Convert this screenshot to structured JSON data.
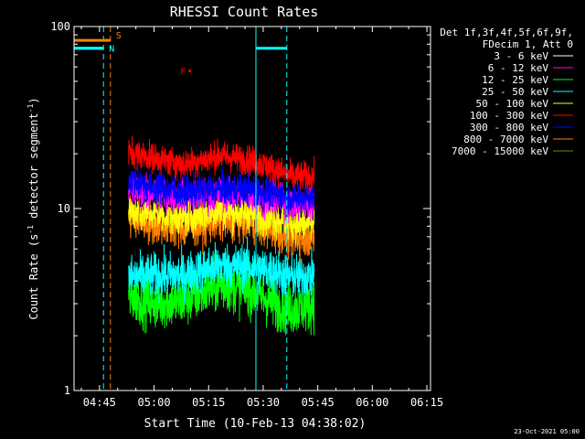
{
  "chart_data": {
    "type": "line",
    "title": "RHESSI Count Rates",
    "xlabel": "Start Time (10-Feb-13 04:38:02)",
    "ylabel_main": "Count Rate (s",
    "ylabel_sup1": "-1",
    "ylabel_mid": " detector segment",
    "ylabel_sup2": "-1",
    "ylabel_end": ")",
    "x_unit": "minutes since 04:38:02",
    "xlim": [
      0,
      98
    ],
    "ylim": [
      1,
      100
    ],
    "y_scale": "log",
    "x_ticks": [
      {
        "label": "04:45",
        "t": 7
      },
      {
        "label": "05:00",
        "t": 22
      },
      {
        "label": "05:15",
        "t": 37
      },
      {
        "label": "05:30",
        "t": 52
      },
      {
        "label": "05:45",
        "t": 67
      },
      {
        "label": "06:00",
        "t": 82
      },
      {
        "label": "06:15",
        "t": 97
      }
    ],
    "y_ticks": [
      {
        "label": "1",
        "v": 1
      },
      {
        "label": "10",
        "v": 10
      },
      {
        "label": "100",
        "v": 100
      }
    ],
    "legend": {
      "placement": "right",
      "header": [
        "Det 1f,3f,4f,5f,6f,9f,",
        "FDecim 1, Att 0"
      ],
      "entries": [
        {
          "label": "3 - 6 keV",
          "color": "#ffffff"
        },
        {
          "label": "6 - 12 keV",
          "color": "#ff00ff"
        },
        {
          "label": "12 - 25 keV",
          "color": "#00ff00"
        },
        {
          "label": "25 - 50 keV",
          "color": "#00ffff"
        },
        {
          "label": "50 - 100 keV",
          "color": "#ffff00"
        },
        {
          "label": "100 - 300 keV",
          "color": "#ff0000"
        },
        {
          "label": "300 - 800 keV",
          "color": "#0000ff"
        },
        {
          "label": "800 - 7000 keV",
          "color": "#ff8000"
        },
        {
          "label": "7000 - 15000 keV",
          "color": "#808000"
        }
      ]
    },
    "data_window": [
      15,
      66
    ],
    "series": [
      {
        "name": "3 - 6 keV",
        "color": "#000000",
        "noise": 0.09,
        "points": [
          [
            15,
            3.2
          ],
          [
            22,
            2.8
          ],
          [
            30,
            3.0
          ],
          [
            40,
            3.6
          ],
          [
            50,
            3.5
          ],
          [
            55,
            3.0
          ],
          [
            60,
            2.5
          ],
          [
            66,
            2.6
          ]
        ]
      },
      {
        "name": "12 - 25 keV",
        "color": "#00ff00",
        "noise": 0.07,
        "points": [
          [
            15,
            3.3
          ],
          [
            22,
            3.0
          ],
          [
            30,
            3.1
          ],
          [
            40,
            3.8
          ],
          [
            48,
            3.6
          ],
          [
            55,
            3.0
          ],
          [
            60,
            2.8
          ],
          [
            66,
            3.0
          ]
        ]
      },
      {
        "name": "25 - 50 keV",
        "color": "#00ffff",
        "noise": 0.06,
        "points": [
          [
            15,
            4.2
          ],
          [
            22,
            4.3
          ],
          [
            30,
            4.3
          ],
          [
            40,
            4.9
          ],
          [
            48,
            4.8
          ],
          [
            55,
            4.5
          ],
          [
            60,
            4.2
          ],
          [
            66,
            4.3
          ]
        ]
      },
      {
        "name": "800 - 7000 keV",
        "color": "#ff8000",
        "noise": 0.055,
        "points": [
          [
            15,
            8.8
          ],
          [
            22,
            8.2
          ],
          [
            30,
            7.8
          ],
          [
            40,
            8.6
          ],
          [
            48,
            8.5
          ],
          [
            55,
            7.5
          ],
          [
            60,
            6.9
          ],
          [
            66,
            7.0
          ]
        ]
      },
      {
        "name": "50 - 100 keV",
        "color": "#ffff00",
        "noise": 0.05,
        "points": [
          [
            15,
            9.8
          ],
          [
            22,
            9.4
          ],
          [
            30,
            9.0
          ],
          [
            40,
            9.8
          ],
          [
            48,
            9.5
          ],
          [
            55,
            8.9
          ],
          [
            60,
            8.3
          ],
          [
            66,
            8.2
          ]
        ]
      },
      {
        "name": "6 - 12 keV",
        "color": "#ff00ff",
        "noise": 0.045,
        "points": [
          [
            15,
            12.5
          ],
          [
            22,
            12.0
          ],
          [
            30,
            11.6
          ],
          [
            40,
            12.0
          ],
          [
            48,
            11.8
          ],
          [
            55,
            11.0
          ],
          [
            60,
            10.5
          ],
          [
            66,
            10.5
          ]
        ]
      },
      {
        "name": "300 - 800 keV",
        "color": "#0000ff",
        "noise": 0.045,
        "points": [
          [
            15,
            14.5
          ],
          [
            22,
            13.0
          ],
          [
            30,
            12.3
          ],
          [
            40,
            12.8
          ],
          [
            48,
            12.8
          ],
          [
            55,
            12.0
          ],
          [
            60,
            11.5
          ],
          [
            66,
            11.7
          ]
        ]
      },
      {
        "name": "100 - 300 keV",
        "color": "#ff0000",
        "noise": 0.04,
        "points": [
          [
            15,
            20.5
          ],
          [
            22,
            19.0
          ],
          [
            30,
            17.5
          ],
          [
            40,
            19.5
          ],
          [
            48,
            18.5
          ],
          [
            55,
            16.5
          ],
          [
            60,
            15.0
          ],
          [
            66,
            15.0
          ]
        ]
      }
    ],
    "attenuator_bars": [
      {
        "color": "#00ffff",
        "y": 76,
        "t0": 0,
        "t1": 8.1
      },
      {
        "color": "#00ffff",
        "y": 76,
        "t0": 50,
        "t1": 58.5
      }
    ],
    "flags": [
      {
        "label": "S",
        "color": "#ff8000",
        "y": 84,
        "t0": 0,
        "t1": 10.0
      },
      {
        "label": "N",
        "color": "#00ffff",
        "y": 76,
        "t0": 0,
        "t1": 8.1
      },
      {
        "label": "F",
        "color": "#ff0000",
        "y": 57,
        "t0": 31.5,
        "t1": 32.2
      }
    ],
    "vlines": [
      {
        "t": 8.1,
        "color": "#00ffff",
        "dashed": true
      },
      {
        "t": 10.0,
        "color": "#ff8000",
        "dashed": true
      },
      {
        "t": 50.0,
        "color": "#00ffff",
        "dashed": false
      },
      {
        "t": 58.5,
        "color": "#00ffff",
        "dashed": true
      }
    ],
    "footer_date": "23-Oct-2021 05:00",
    "grid": false
  }
}
